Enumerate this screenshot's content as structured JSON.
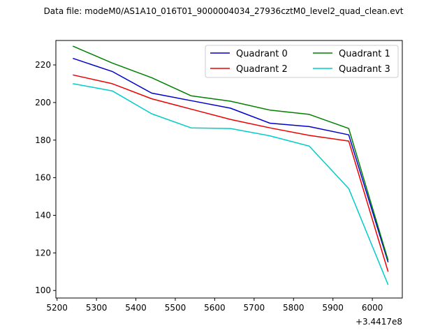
{
  "chart_data": {
    "type": "line",
    "title": "Data file: modeM0/AS1A10_016T01_9000004034_27936cztM0_level2_quad_clean.evt",
    "offset_label": "+3.4417e8",
    "xlabel": "",
    "ylabel": "",
    "xlim": [
      5197,
      6076
    ],
    "ylim": [
      96,
      233
    ],
    "xticks": [
      5200,
      5300,
      5400,
      5500,
      5600,
      5700,
      5800,
      5900,
      6000
    ],
    "yticks": [
      100,
      120,
      140,
      160,
      180,
      200,
      220
    ],
    "x": [
      5240,
      5340,
      5440,
      5540,
      5640,
      5740,
      5840,
      5940,
      6040
    ],
    "grid": false,
    "legend_position": "top-right",
    "series": [
      {
        "name": "Quadrant 0",
        "color": "#0000cc",
        "values": [
          223.5,
          216.5,
          205,
          201,
          197,
          189,
          187.2,
          182.8,
          115
        ]
      },
      {
        "name": "Quadrant 1",
        "color": "#008000",
        "values": [
          230,
          221,
          213.2,
          203.6,
          200.7,
          196,
          193.7,
          186.2,
          116
        ]
      },
      {
        "name": "Quadrant 2",
        "color": "#ee0000",
        "values": [
          214.7,
          210,
          202,
          196.5,
          191,
          186.5,
          182.5,
          179.5,
          110
        ]
      },
      {
        "name": "Quadrant 3",
        "color": "#00cccc",
        "values": [
          210,
          206.2,
          194,
          186.5,
          186.2,
          182.3,
          176.8,
          154.2,
          103
        ]
      }
    ]
  }
}
